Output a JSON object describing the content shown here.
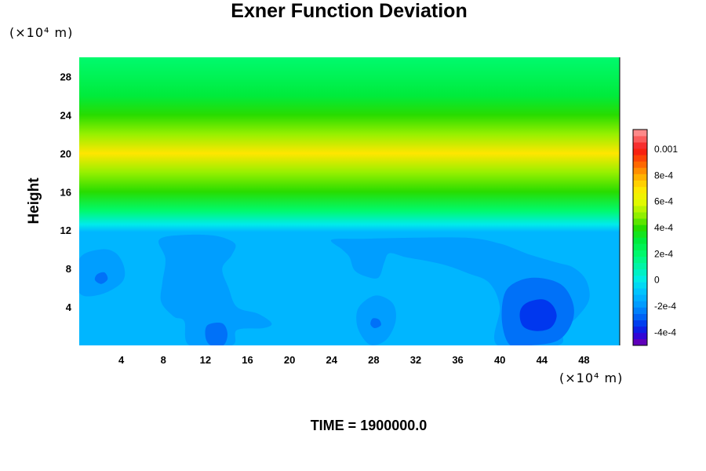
{
  "chart_data": {
    "type": "heatmap",
    "title": "Exner Function Deviation",
    "ylabel": "Height",
    "x_unit": "(×10⁴ m)",
    "y_unit": "(×10⁴ m)",
    "footer": "TIME = 1900000.0",
    "xlim": [
      0,
      51.4
    ],
    "ylim": [
      0,
      30
    ],
    "x_ticks": [
      4,
      8,
      12,
      16,
      20,
      24,
      28,
      32,
      36,
      40,
      44,
      48
    ],
    "y_ticks": [
      4,
      8,
      12,
      16,
      20,
      24,
      28
    ],
    "colorbar": {
      "range": [
        -0.0005,
        0.00115
      ],
      "tick_values": [
        0.001,
        0.0008,
        0.0006,
        0.0004,
        0.0002,
        0,
        -0.0002,
        -0.0004
      ],
      "tick_labels": [
        "0.001",
        "8e-4",
        "6e-4",
        "4e-4",
        "2e-4",
        "0",
        "-2e-4",
        "-4e-4"
      ]
    },
    "vertical_profile": [
      {
        "height": 0,
        "value": -0.00012
      },
      {
        "height": 11.8,
        "value": -0.00012
      },
      {
        "height": 12.6,
        "value": 0.0
      },
      {
        "height": 14,
        "value": 0.0002
      },
      {
        "height": 16,
        "value": 0.0004
      },
      {
        "height": 18,
        "value": 0.0005
      },
      {
        "height": 20,
        "value": 0.0007
      },
      {
        "height": 22,
        "value": 0.0005
      },
      {
        "height": 24,
        "value": 0.0004
      },
      {
        "height": 26,
        "value": 0.0003
      },
      {
        "height": 28,
        "value": 0.00025
      },
      {
        "height": 30,
        "value": 0.0002
      }
    ],
    "regions": [
      {
        "value": -0.00018,
        "points": [
          [
            0,
            9
          ],
          [
            2,
            10
          ],
          [
            3.5,
            9.6
          ],
          [
            4.3,
            8
          ],
          [
            4,
            6.5
          ],
          [
            2,
            5.3
          ],
          [
            0,
            5.5
          ]
        ]
      },
      {
        "value": -0.00026,
        "points": [
          [
            1.7,
            7.4
          ],
          [
            2.4,
            7.6
          ],
          [
            2.7,
            6.9
          ],
          [
            2.1,
            6.4
          ],
          [
            1.5,
            6.8
          ]
        ]
      },
      {
        "value": -0.00018,
        "points": [
          [
            7.6,
            11
          ],
          [
            10,
            11.5
          ],
          [
            13,
            11.4
          ],
          [
            14.8,
            10.6
          ],
          [
            14.5,
            9.4
          ],
          [
            13.6,
            8
          ],
          [
            14.2,
            6
          ],
          [
            15,
            4
          ],
          [
            17,
            3.3
          ],
          [
            18.3,
            2.3
          ],
          [
            17.5,
            1.8
          ],
          [
            15,
            1.6
          ],
          [
            14.5,
            0
          ],
          [
            10.5,
            0
          ],
          [
            10,
            2.5
          ],
          [
            9,
            3
          ],
          [
            7.8,
            4.5
          ],
          [
            7.9,
            6.5
          ],
          [
            8.2,
            9
          ]
        ]
      },
      {
        "value": -0.00026,
        "points": [
          [
            12.2,
            2.1
          ],
          [
            13.6,
            2.3
          ],
          [
            14.1,
            1.2
          ],
          [
            13.7,
            0
          ],
          [
            12.5,
            0
          ],
          [
            12.0,
            0.9
          ]
        ]
      },
      {
        "value": -0.00018,
        "points": [
          [
            24,
            11
          ],
          [
            27,
            11.1
          ],
          [
            31,
            11.2
          ],
          [
            37,
            11.2
          ],
          [
            40,
            10.6
          ],
          [
            42,
            9.8
          ],
          [
            43,
            9.4
          ],
          [
            45.5,
            8.6
          ],
          [
            47,
            8.1
          ],
          [
            48.2,
            6.8
          ],
          [
            48.5,
            4.8
          ],
          [
            47.4,
            3
          ],
          [
            46,
            1.6
          ],
          [
            45.5,
            0
          ],
          [
            39.8,
            0
          ],
          [
            40,
            4
          ],
          [
            39,
            6.5
          ],
          [
            37,
            7.5
          ],
          [
            35,
            8.3
          ],
          [
            33,
            8.8
          ],
          [
            31,
            9.2
          ],
          [
            29.5,
            9.6
          ],
          [
            29,
            8.6
          ],
          [
            28.5,
            7.1
          ],
          [
            27.5,
            7.1
          ],
          [
            26.2,
            7.8
          ],
          [
            25.7,
            9.2
          ],
          [
            25,
            10
          ]
        ]
      },
      {
        "value": -0.00026,
        "points": [
          [
            40.5,
            5.5
          ],
          [
            42,
            6.8
          ],
          [
            44,
            7
          ],
          [
            46,
            6.2
          ],
          [
            47,
            4.2
          ],
          [
            46.8,
            2.2
          ],
          [
            45.5,
            0.5
          ],
          [
            43,
            0
          ],
          [
            41,
            0
          ],
          [
            40.2,
            2.5
          ]
        ]
      },
      {
        "value": -0.00034,
        "points": [
          [
            42.5,
            4.4
          ],
          [
            44,
            4.8
          ],
          [
            45,
            4.2
          ],
          [
            45.4,
            3
          ],
          [
            44.8,
            1.8
          ],
          [
            43.4,
            1.5
          ],
          [
            42.2,
            2
          ],
          [
            41.9,
            3.4
          ]
        ]
      },
      {
        "value": -0.00018,
        "points": [
          [
            26.6,
            4
          ],
          [
            28.2,
            5.2
          ],
          [
            29.8,
            4.4
          ],
          [
            30.1,
            2.6
          ],
          [
            29.3,
            0.7
          ],
          [
            28,
            0
          ],
          [
            27.1,
            0.6
          ],
          [
            26.4,
            2.2
          ]
        ]
      },
      {
        "value": -0.00026,
        "points": [
          [
            27.9,
            2.8
          ],
          [
            28.5,
            2.7
          ],
          [
            28.7,
            2.1
          ],
          [
            28.1,
            1.8
          ],
          [
            27.7,
            2.2
          ]
        ]
      }
    ]
  }
}
